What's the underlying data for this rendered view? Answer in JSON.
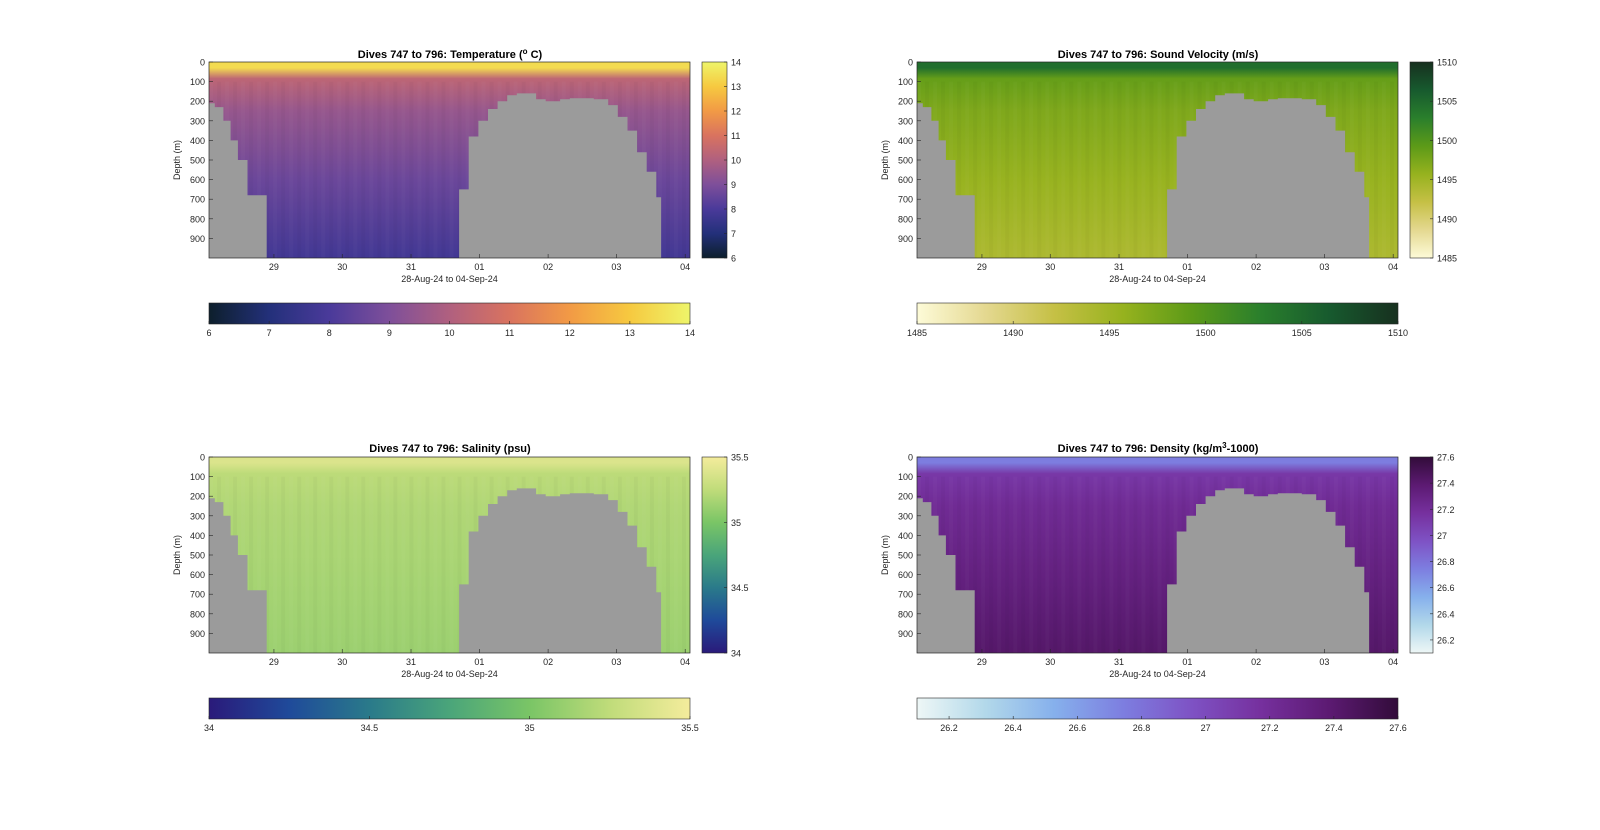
{
  "figure": {
    "date_label": "28-Aug-24 to 04-Sep-24",
    "ylabel": "Depth (m)"
  },
  "chart_data": [
    {
      "type": "heatmap",
      "title": "Dives 747 to 796: Temperature (° C)",
      "title_parts": [
        "Dives 747 to 796: Temperature (",
        "o",
        " C)"
      ],
      "xlabel": "28-Aug-24 to 04-Sep-24",
      "ylabel": "Depth (m)",
      "x_ticks": [
        "29",
        "30",
        "31",
        "01",
        "02",
        "03",
        "04"
      ],
      "y_ticks": [
        0,
        100,
        200,
        300,
        400,
        500,
        600,
        700,
        800,
        900
      ],
      "ylim": [
        0,
        1000
      ],
      "clim": [
        6,
        14
      ],
      "colorbar_ticks": [
        6,
        7,
        8,
        9,
        10,
        11,
        12,
        13,
        14
      ],
      "colormap": [
        "#0d1f2c",
        "#23307a",
        "#4a3a9a",
        "#7e4f9a",
        "#b0607f",
        "#d9735f",
        "#f29a45",
        "#f6c940",
        "#eef56a"
      ],
      "surface_value": 13.4,
      "deep_value": 7.8
    },
    {
      "type": "heatmap",
      "title": "Dives 747 to 796: Sound Velocity (m/s)",
      "xlabel": "28-Aug-24 to 04-Sep-24",
      "ylabel": "Depth (m)",
      "x_ticks": [
        "29",
        "30",
        "31",
        "01",
        "02",
        "03",
        "04"
      ],
      "y_ticks": [
        0,
        100,
        200,
        300,
        400,
        500,
        600,
        700,
        800,
        900
      ],
      "ylim": [
        0,
        1000
      ],
      "clim": [
        1485,
        1510
      ],
      "colorbar_ticks": [
        1485,
        1490,
        1495,
        1500,
        1505,
        1510
      ],
      "colormap": [
        "#fdfbd8",
        "#e4d890",
        "#c5c045",
        "#96b21e",
        "#5c9a18",
        "#2a7f2c",
        "#175a2e",
        "#17301f"
      ],
      "surface_value": 1504.5,
      "deep_value": 1494
    },
    {
      "type": "heatmap",
      "title": "Dives 747 to 796: Salinity (psu)",
      "xlabel": "28-Aug-24 to 04-Sep-24",
      "ylabel": "Depth (m)",
      "x_ticks": [
        "29",
        "30",
        "31",
        "01",
        "02",
        "03",
        "04"
      ],
      "y_ticks": [
        0,
        100,
        200,
        300,
        400,
        500,
        600,
        700,
        800,
        900
      ],
      "ylim": [
        0,
        1000
      ],
      "clim": [
        34,
        35.5
      ],
      "colorbar_ticks": [
        34,
        34.5,
        35,
        35.5
      ],
      "colormap": [
        "#2a1a7a",
        "#1f4a9a",
        "#2a7a8a",
        "#4aa57a",
        "#7ac566",
        "#c0dc7a",
        "#f4ec9c"
      ],
      "surface_value": 35.38,
      "deep_value": 35.12
    },
    {
      "type": "heatmap",
      "title": "Dives 747 to 796: Density (kg/m³-1000)",
      "title_parts": [
        "Dives 747 to 796: Density (kg/m",
        "3",
        "-1000)"
      ],
      "xlabel": "28-Aug-24 to 04-Sep-24",
      "ylabel": "Depth (m)",
      "x_ticks": [
        "29",
        "30",
        "31",
        "01",
        "02",
        "03",
        "04"
      ],
      "y_ticks": [
        0,
        100,
        200,
        300,
        400,
        500,
        600,
        700,
        800,
        900
      ],
      "ylim": [
        0,
        1000
      ],
      "clim": [
        26.1,
        27.6
      ],
      "colorbar_ticks": [
        26.2,
        26.4,
        26.6,
        26.8,
        27,
        27.2,
        27.4,
        27.6
      ],
      "colormap": [
        "#eef7f6",
        "#b2d8ea",
        "#86b0ec",
        "#7d7ee0",
        "#7e52c4",
        "#76309e",
        "#5c1a72",
        "#320c3a"
      ],
      "surface_value": 26.75,
      "deep_value": 27.42
    }
  ]
}
